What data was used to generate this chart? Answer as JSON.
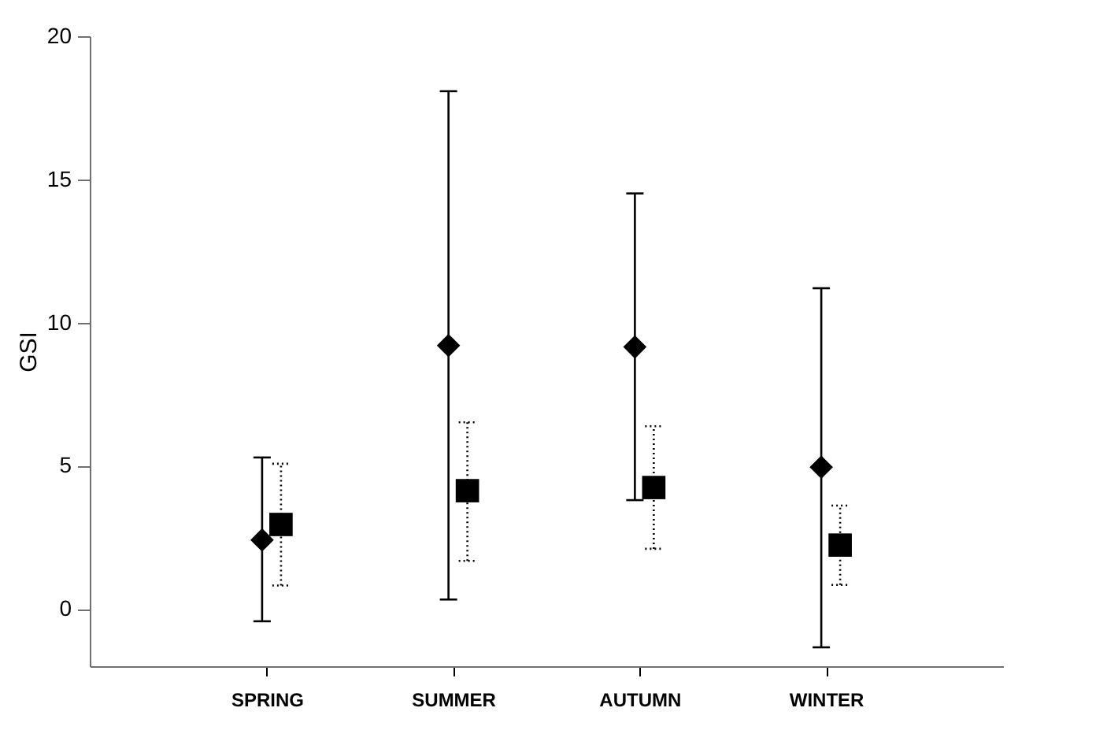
{
  "chart_data": {
    "type": "scatter",
    "ylabel": "GSI",
    "categories": [
      "SPRING",
      "SUMMER",
      "AUTUMN",
      "WINTER"
    ],
    "series": [
      {
        "color": "#000000",
        "marker": "diamond",
        "line_style": "solid",
        "values": [
          2.41,
          9.2,
          9.15,
          4.95
        ],
        "errors": [
          [
            -0.43,
            5.29
          ],
          [
            0.33,
            18.08
          ],
          [
            3.8,
            14.51
          ],
          [
            -1.34,
            11.2
          ]
        ]
      },
      {
        "color": "#000000",
        "marker": "square",
        "line_style": "dotted",
        "values": [
          2.95,
          4.13,
          4.24,
          2.23
        ],
        "errors": [
          [
            0.82,
            5.07
          ],
          [
            1.68,
            6.52
          ],
          [
            2.1,
            6.38
          ],
          [
            0.84,
            3.61
          ]
        ]
      }
    ],
    "ylim": [
      -2,
      20
    ],
    "yticks": [
      0,
      5,
      10,
      15,
      20
    ],
    "grid": false
  }
}
